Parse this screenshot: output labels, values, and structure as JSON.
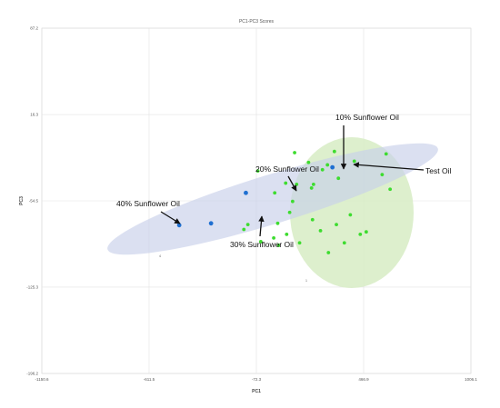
{
  "chart_data": {
    "type": "scatter",
    "title": "PC1-PC3 Scores",
    "xlabel": "PC1",
    "ylabel": "PC3",
    "xlim": [
      -1150.6,
      1006.1
    ],
    "ylim": [
      -196.2,
      87.2
    ],
    "x_ticks": [
      "-1150.6",
      "-611.5",
      "-72.3",
      "466.9",
      "1006.1"
    ],
    "y_ticks": [
      "87.2",
      "16.3",
      "-54.5",
      "-125.3",
      "-196.2"
    ],
    "grid": true,
    "legend": "none",
    "colors": {
      "blend": "#1f6fd1",
      "sample": "#3ddc2f",
      "blend_ellipse": "#c7d0ea",
      "sample_ellipse": "#d7ecc4"
    },
    "series": [
      {
        "points": [
          {
            "x": -300,
            "y": -73.0
          },
          {
            "x": -460,
            "y": -74.5
          },
          {
            "x": -125,
            "y": -48.0
          },
          {
            "x": 310,
            "y": -27.0
          }
        ]
      },
      {
        "points": [
          {
            "x": -135,
            "y": -78.0
          },
          {
            "x": -65,
            "y": -30.0
          },
          {
            "x": 40,
            "y": -91.0
          },
          {
            "x": -115,
            "y": -74.0
          },
          {
            "x": -50,
            "y": -88.0
          },
          {
            "x": 15,
            "y": -85.0
          },
          {
            "x": 80,
            "y": -82.0
          },
          {
            "x": 145,
            "y": -89.0
          },
          {
            "x": 210,
            "y": -70.0
          },
          {
            "x": 290,
            "y": -97.0
          },
          {
            "x": 370,
            "y": -89.0
          },
          {
            "x": 250,
            "y": -79.0
          },
          {
            "x": 330,
            "y": -74.0
          },
          {
            "x": 480,
            "y": -80.0
          },
          {
            "x": 400,
            "y": -66.0
          },
          {
            "x": 450,
            "y": -82.0
          },
          {
            "x": 95,
            "y": -64.0
          },
          {
            "x": 35,
            "y": -73.0
          },
          {
            "x": 20,
            "y": -48.0
          },
          {
            "x": 75,
            "y": -40.0
          },
          {
            "x": 130,
            "y": -41.0
          },
          {
            "x": 205,
            "y": -44.0
          },
          {
            "x": 340,
            "y": -36.0
          },
          {
            "x": 260,
            "y": -29.0
          },
          {
            "x": 215,
            "y": -41.0
          },
          {
            "x": 320,
            "y": -14.0
          },
          {
            "x": 190,
            "y": -23.0
          },
          {
            "x": 120,
            "y": -15.0
          },
          {
            "x": 580,
            "y": -16.0
          },
          {
            "x": 420,
            "y": -22.0
          },
          {
            "x": 600,
            "y": -45.0
          },
          {
            "x": 560,
            "y": -33.0
          },
          {
            "x": 110,
            "y": -55.0
          },
          {
            "x": 285,
            "y": -25.0
          }
        ]
      }
    ],
    "annotations": [
      {
        "text": "40% Sunflower Oil"
      },
      {
        "text": "30% Sunflower Oil"
      },
      {
        "text": "20% Sunflower Oil"
      },
      {
        "text": "10% Sunflower Oil"
      },
      {
        "text": "Test Oil"
      }
    ],
    "stray_marks": [
      "4",
      "1"
    ]
  }
}
